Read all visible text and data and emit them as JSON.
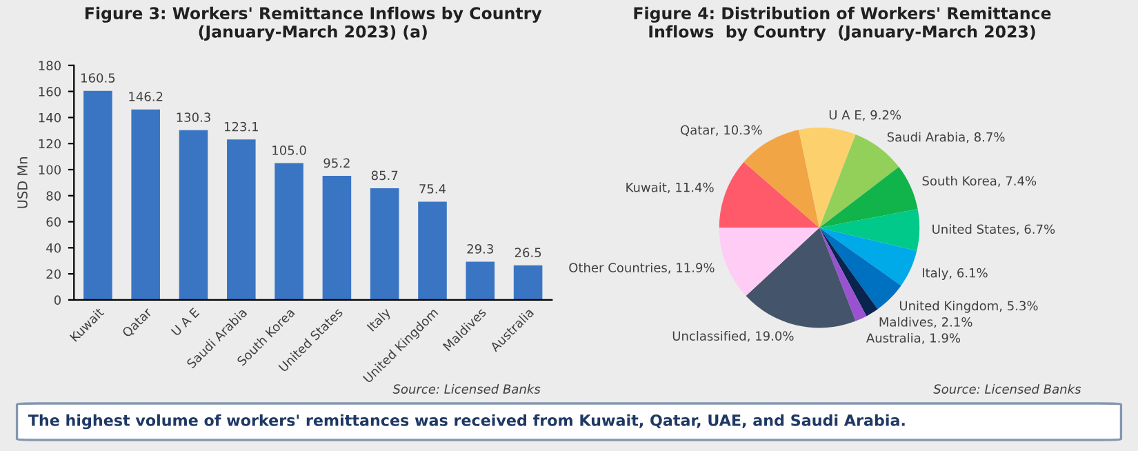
{
  "chart_data": [
    {
      "type": "bar",
      "title": "Figure 3: Workers' Remittance Inflows by Country\n(January-March 2023) (a)",
      "ylabel": "USD Mn",
      "categories": [
        "Kuwait",
        "Qatar",
        "U A E",
        "Saudi Arabia",
        "South Korea",
        "United States",
        "Italy",
        "United Kingdom",
        "Maldives",
        "Australia"
      ],
      "values": [
        160.5,
        146.2,
        130.3,
        123.1,
        105.0,
        95.2,
        85.7,
        75.4,
        29.3,
        26.5
      ],
      "value_labels": [
        "160.5",
        "146.2",
        "130.3",
        "123.1",
        "105.0",
        "95.2",
        "85.7",
        "75.4",
        "29.3",
        "26.5"
      ],
      "color": "#3a75c4",
      "ylim": [
        0,
        180
      ],
      "yticks": [
        0,
        20,
        40,
        60,
        80,
        100,
        120,
        140,
        160,
        180
      ],
      "grid": false,
      "legend": false,
      "annotations": [
        "Source: Licensed Banks"
      ]
    },
    {
      "type": "pie",
      "title": "Figure 4: Distribution of Workers' Remittance\nInflows  by Country  (January-March 2023)",
      "categories": [
        "Kuwait",
        "Qatar",
        "U A E",
        "Saudi Arabia",
        "South Korea",
        "United States",
        "Italy",
        "United Kingdom",
        "Maldives",
        "Australia",
        "Unclassified",
        "Other Countries"
      ],
      "values": [
        11.4,
        10.3,
        9.2,
        8.7,
        7.4,
        6.7,
        6.1,
        5.3,
        2.1,
        1.9,
        19.0,
        11.9
      ],
      "value_labels": [
        "11.4%",
        "10.3%",
        "9.2%",
        "8.7%",
        "7.4%",
        "6.7%",
        "6.1%",
        "5.3%",
        "2.1%",
        "1.9%",
        "19.0%",
        "11.9%"
      ],
      "colors": [
        "#ff5a6a",
        "#f2a545",
        "#fdd06e",
        "#92d05a",
        "#10b44a",
        "#00c98a",
        "#00a9e8",
        "#0070c0",
        "#0a2450",
        "#9a52d0",
        "#44546a",
        "#ffccf5"
      ],
      "legend": false,
      "annotations": [
        "Source: Licensed Banks"
      ]
    },
    {
      "type": "other",
      "annotations": [
        "The highest volume of workers' remittances was received from Kuwait, Qatar, UAE, and Saudi Arabia."
      ]
    }
  ]
}
